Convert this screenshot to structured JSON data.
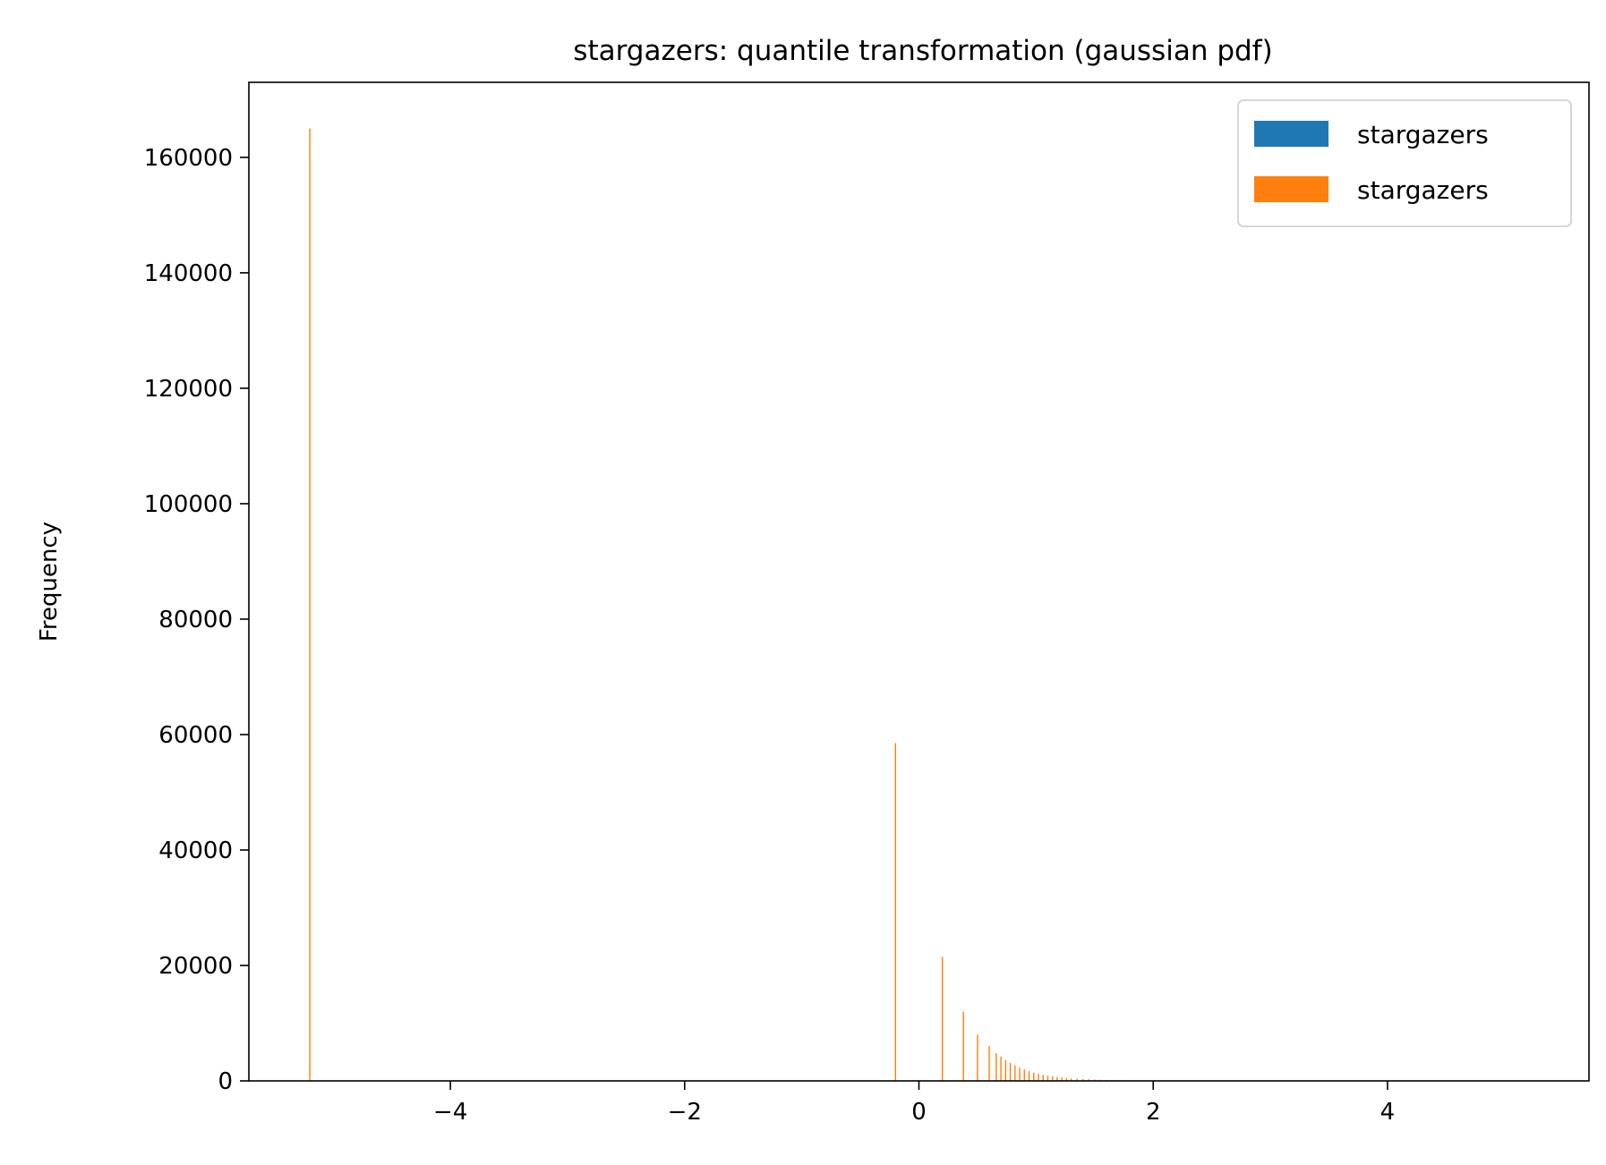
{
  "chart_data": {
    "type": "bar",
    "title": "stargazers: quantile transformation (gaussian pdf)",
    "xlabel": "",
    "ylabel": "Frequency",
    "xlim": [
      -5.72,
      5.72
    ],
    "ylim": [
      0,
      173000
    ],
    "xticks": [
      -4,
      -2,
      0,
      2,
      4
    ],
    "xtick_labels": [
      "−4",
      "−2",
      "0",
      "2",
      "4"
    ],
    "yticks": [
      0,
      20000,
      40000,
      60000,
      80000,
      100000,
      120000,
      140000,
      160000
    ],
    "ytick_labels": [
      "0",
      "20000",
      "40000",
      "60000",
      "80000",
      "100000",
      "120000",
      "140000",
      "160000"
    ],
    "grid": false,
    "legend_position": "top-right",
    "series": [
      {
        "name": "stargazers",
        "color": "#1f77b4",
        "x": [],
        "values": []
      },
      {
        "name": "stargazers",
        "color": "#ff7f0e",
        "x": [
          -5.2,
          -0.2,
          0.2,
          0.38,
          0.5,
          0.6,
          0.66,
          0.7,
          0.74,
          0.78,
          0.82,
          0.86,
          0.9,
          0.94,
          0.98,
          1.02,
          1.06,
          1.1,
          1.14,
          1.18,
          1.22,
          1.26,
          1.3,
          1.35,
          1.4,
          1.45,
          1.5,
          1.55,
          1.6,
          1.65,
          1.7,
          1.75,
          1.8
        ],
        "values": [
          165000,
          58500,
          21500,
          12000,
          8000,
          6000,
          4800,
          4200,
          3600,
          3100,
          2700,
          2300,
          2000,
          1700,
          1400,
          1200,
          1050,
          900,
          780,
          680,
          590,
          510,
          440,
          380,
          330,
          280,
          240,
          200,
          170,
          140,
          120,
          100,
          80
        ]
      }
    ]
  }
}
